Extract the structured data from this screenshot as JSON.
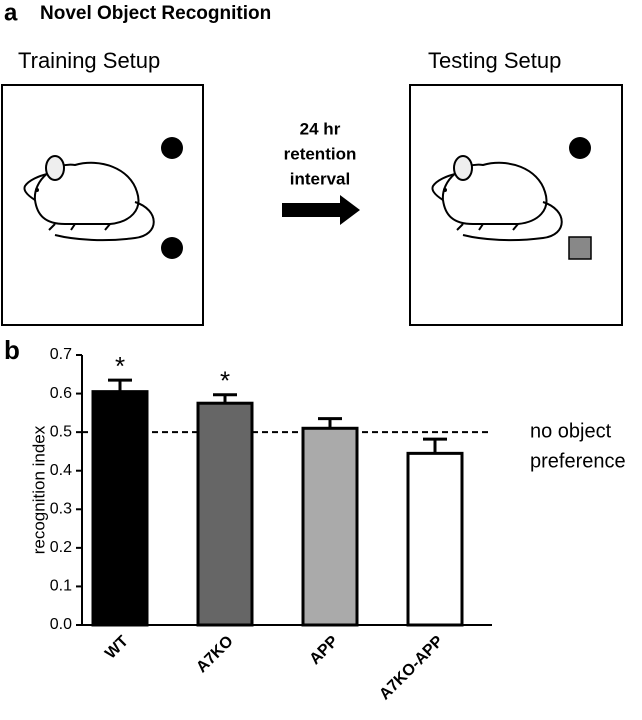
{
  "panel_a": {
    "label": "a",
    "title": "Novel Object Recognition",
    "training_label": "Training Setup",
    "testing_label": "Testing Setup",
    "arrow_lines": [
      "24 hr",
      "retention",
      "interval"
    ]
  },
  "chart_data": {
    "type": "bar",
    "panel_label": "b",
    "ylabel": "recognition index",
    "categories": [
      "WT",
      "A7KO",
      "APP",
      "A7KO-APP"
    ],
    "values": [
      0.605,
      0.575,
      0.51,
      0.445
    ],
    "errors": [
      0.03,
      0.022,
      0.025,
      0.037
    ],
    "colors": [
      "#000000",
      "#666666",
      "#aaaaaa",
      "#ffffff"
    ],
    "significance": [
      "*",
      "*",
      null,
      null
    ],
    "ylim": [
      0,
      0.7
    ],
    "yticks": [
      {
        "value": 0,
        "label": "0.0"
      },
      0.1,
      0.2,
      0.3,
      0.4,
      0.5,
      0.6,
      0.7
    ],
    "reference_line": {
      "value": 0.5,
      "label_lines": [
        "no object",
        "preference"
      ]
    }
  }
}
